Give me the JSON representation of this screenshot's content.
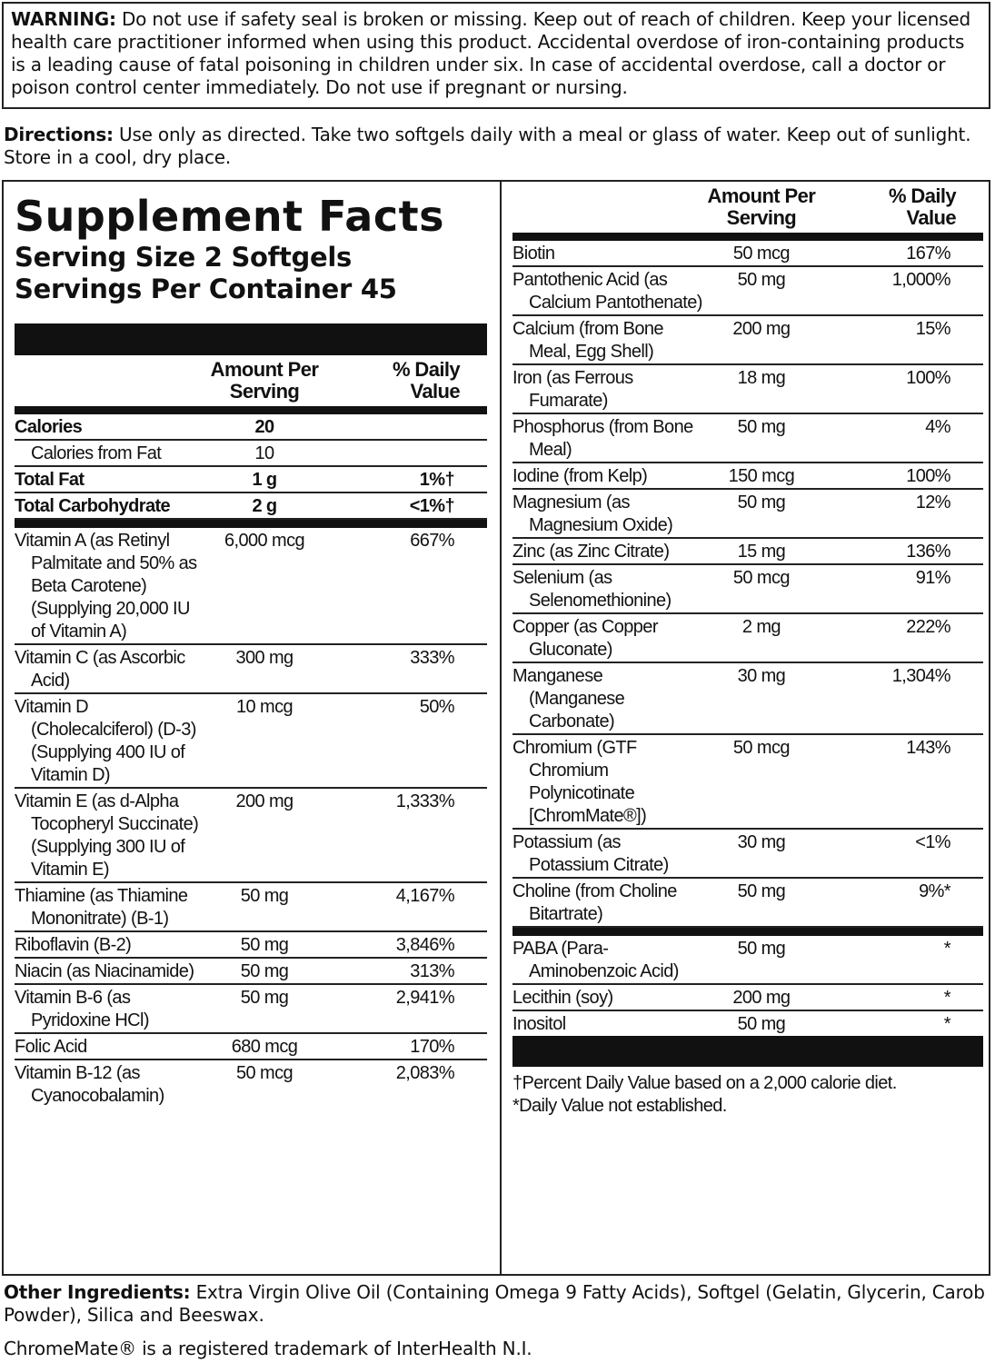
{
  "warning": {
    "label": "WARNING:",
    "text": "Do not use if safety seal is broken or missing. Keep out of reach of children. Keep your licensed health care practitioner informed when using this product. Accidental overdose of iron-containing products is a leading cause of fatal poisoning in children under six. In case of accidental overdose, call a doctor or poison control center immediately. Do not use if pregnant or nursing."
  },
  "directions": {
    "label": "Directions:",
    "text": "Use only as directed. Take two softgels daily with a meal or glass of water. Keep out of sunlight. Store in a cool, dry place."
  },
  "facts": {
    "title": "Supplement Facts",
    "serving_size": "Serving Size 2 Softgels",
    "servings_per_container": "Servings Per Container 45",
    "header": {
      "amount": "Amount Per Serving",
      "dv": "% Daily Value"
    },
    "left_sections": [
      [
        {
          "name": "Calories",
          "amount": "20",
          "bold": true
        },
        {
          "name": "Calories from Fat",
          "amount": "10",
          "indent": true
        },
        {
          "name": "Total Fat",
          "amount": "1 g",
          "dv": "1%†",
          "bold": true
        },
        {
          "name": "Total Carbohydrate",
          "amount": "2 g",
          "dv": "<1%†",
          "bold": true
        }
      ],
      [
        {
          "name": "Vitamin A (as Retinyl Palmitate and 50% as Beta Carotene) (Supplying 20,000 IU of Vitamin A)",
          "amount": "6,000 mcg",
          "dv": "667%"
        },
        {
          "name": "Vitamin C (as Ascorbic Acid)",
          "amount": "300 mg",
          "dv": "333%"
        },
        {
          "name": "Vitamin D (Cholecalciferol) (D-3) (Supplying 400 IU of Vitamin D)",
          "amount": "10 mcg",
          "dv": "50%"
        },
        {
          "name": "Vitamin E (as d-Alpha Tocopheryl Succinate) (Supplying 300 IU of Vitamin E)",
          "amount": "200 mg",
          "dv": "1,333%"
        },
        {
          "name": "Thiamine (as Thiamine Mononitrate) (B-1)",
          "amount": "50 mg",
          "dv": "4,167%"
        },
        {
          "name": "Riboflavin (B-2)",
          "amount": "50 mg",
          "dv": "3,846%"
        },
        {
          "name": "Niacin (as Niacinamide)",
          "amount": "50 mg",
          "dv": "313%"
        },
        {
          "name": "Vitamin B-6 (as Pyridoxine HCl)",
          "amount": "50 mg",
          "dv": "2,941%"
        },
        {
          "name": "Folic Acid",
          "amount": "680 mcg",
          "dv": "170%"
        },
        {
          "name": "Vitamin B-12 (as Cyanocobalamin)",
          "amount": "50 mcg",
          "dv": "2,083%"
        }
      ]
    ],
    "right_sections": [
      [
        {
          "name": "Biotin",
          "amount": "50 mcg",
          "dv": "167%"
        },
        {
          "name": "Pantothenic Acid (as Calcium Pantothenate)",
          "amount": "50 mg",
          "dv": "1,000%"
        },
        {
          "name": "Calcium (from Bone Meal, Egg Shell)",
          "amount": "200 mg",
          "dv": "15%"
        },
        {
          "name": "Iron (as Ferrous Fumarate)",
          "amount": "18 mg",
          "dv": "100%"
        },
        {
          "name": "Phosphorus (from Bone Meal)",
          "amount": "50 mg",
          "dv": "4%"
        },
        {
          "name": "Iodine (from Kelp)",
          "amount": "150 mcg",
          "dv": "100%"
        },
        {
          "name": "Magnesium (as Magnesium Oxide)",
          "amount": "50 mg",
          "dv": "12%"
        },
        {
          "name": "Zinc (as Zinc Citrate)",
          "amount": "15 mg",
          "dv": "136%"
        },
        {
          "name": "Selenium (as Selenomethionine)",
          "amount": "50 mcg",
          "dv": "91%"
        },
        {
          "name": "Copper (as Copper Gluconate)",
          "amount": "2 mg",
          "dv": "222%"
        },
        {
          "name": "Manganese (Manganese Carbonate)",
          "amount": "30 mg",
          "dv": "1,304%"
        },
        {
          "name": "Chromium (GTF Chromium Polynicotinate [ChromMate®])",
          "amount": "50 mcg",
          "dv": "143%"
        },
        {
          "name": "Potassium (as Potassium Citrate)",
          "amount": "30 mg",
          "dv": "<1%"
        },
        {
          "name": "Choline (from Choline Bitartrate)",
          "amount": "50 mg",
          "dv": "9%*"
        }
      ],
      [
        {
          "name": "PABA (Para-Aminobenzoic Acid)",
          "amount": "50 mg",
          "dv": "*"
        },
        {
          "name": "Lecithin (soy)",
          "amount": "200 mg",
          "dv": "*"
        },
        {
          "name": "Inositol",
          "amount": "50 mg",
          "dv": "*"
        }
      ]
    ],
    "footnotes": [
      "†Percent Daily Value based on a 2,000 calorie diet.",
      "*Daily Value not established."
    ]
  },
  "other_ingredients": {
    "label": "Other Ingredients:",
    "text": "Extra Virgin Olive Oil (Containing Omega 9 Fatty Acids), Softgel (Gelatin, Glycerin, Carob Powder), Silica and Beeswax."
  },
  "trademark": "ChromeMate® is a registered trademark of InterHealth N.I."
}
